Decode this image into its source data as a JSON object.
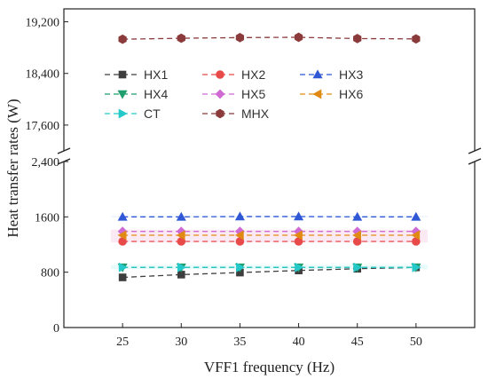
{
  "chart_data": {
    "type": "line",
    "xlabel": "VFF1 frequency (Hz)",
    "ylabel": "Heat transfer rates (W)",
    "x": [
      25,
      30,
      35,
      40,
      45,
      50
    ],
    "xticks": [
      "25",
      "30",
      "35",
      "40",
      "45",
      "50"
    ],
    "xlim": [
      20,
      55
    ],
    "y_axis_broken": true,
    "y_segments": [
      {
        "ylim": [
          0,
          2400
        ],
        "ticks": [
          "0",
          "800",
          "1600",
          "2,400"
        ],
        "tick_values": [
          0,
          800,
          1600,
          2400
        ]
      },
      {
        "ylim": [
          17200,
          19400
        ],
        "ticks": [
          "17,600",
          "18,400",
          "19,200"
        ],
        "tick_values": [
          17600,
          18400,
          19200
        ]
      }
    ],
    "legend_position": "upper-left",
    "series": [
      {
        "name": "HX1",
        "color": "#3e3e3e",
        "marker": "square",
        "values": [
          725,
          765,
          795,
          825,
          850,
          870
        ]
      },
      {
        "name": "HX2",
        "color": "#e84a4a",
        "marker": "circle",
        "values": [
          1245,
          1245,
          1245,
          1245,
          1245,
          1245
        ]
      },
      {
        "name": "HX3",
        "color": "#2f57d6",
        "marker": "triangle-up",
        "values": [
          1600,
          1600,
          1605,
          1605,
          1600,
          1600
        ]
      },
      {
        "name": "HX4",
        "color": "#1f9e6e",
        "marker": "triangle-down",
        "values": [
          870,
          870,
          870,
          870,
          870,
          870
        ]
      },
      {
        "name": "HX5",
        "color": "#cf6ad4",
        "marker": "diamond",
        "values": [
          1390,
          1390,
          1390,
          1390,
          1390,
          1390
        ]
      },
      {
        "name": "HX6",
        "color": "#e08a14",
        "marker": "triangle-left",
        "values": [
          1335,
          1335,
          1335,
          1335,
          1335,
          1335
        ]
      },
      {
        "name": "CT",
        "color": "#26c9c9",
        "marker": "triangle-right",
        "values": [
          870,
          870,
          870,
          870,
          870,
          870
        ]
      },
      {
        "name": "MHX",
        "color": "#8b3b3b",
        "marker": "hexagon",
        "values": [
          18930,
          18945,
          18955,
          18960,
          18940,
          18935
        ]
      }
    ]
  }
}
